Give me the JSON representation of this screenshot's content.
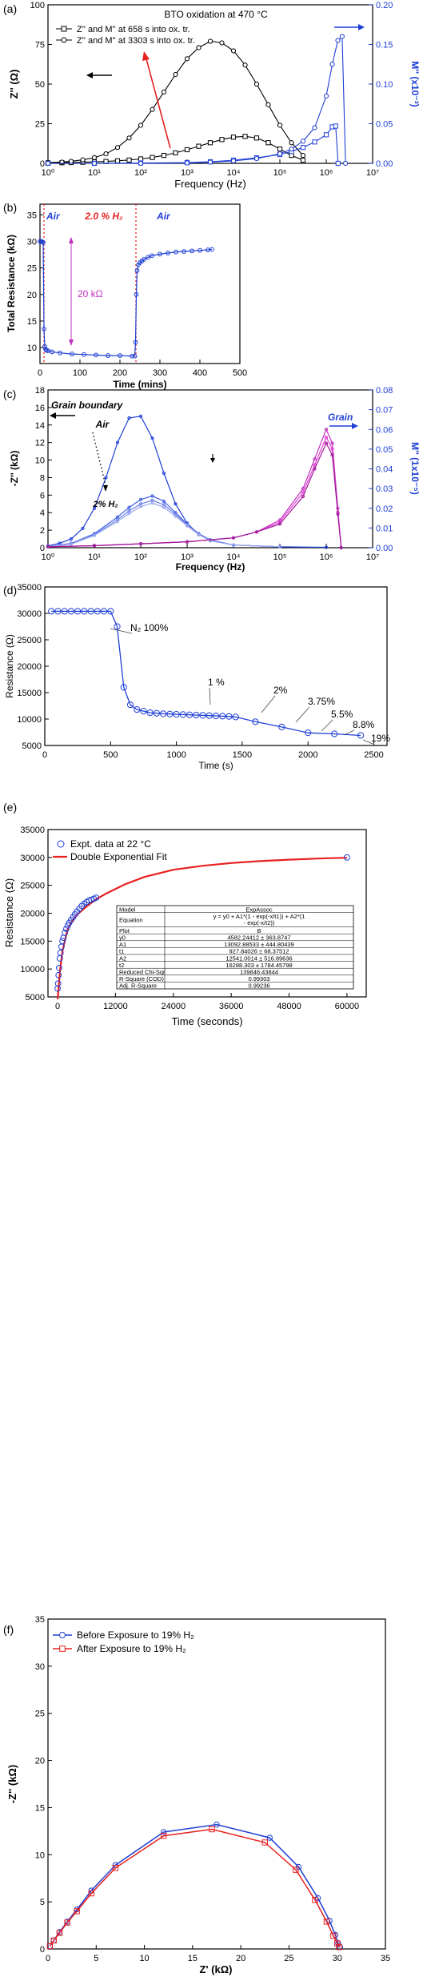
{
  "colors": {
    "black": "#000000",
    "blue": "#1f3fd6",
    "blue_light": "#6a80e6",
    "red": "#e82020",
    "magenta": "#c030c0",
    "magenta_dark": "#a01898",
    "pink": "#e040d0"
  },
  "chart_data": [
    {
      "panel": "(a)",
      "type": "line",
      "title": "BTO oxidation at 470 °C",
      "xlabel": "Frequency (Hz)",
      "ylabel": "Z'' (Ω)",
      "y2label": "M'' (x10⁻³)",
      "xscale": "log",
      "xlim": [
        1,
        10000000
      ],
      "ylim": [
        0,
        100
      ],
      "y2lim": [
        0,
        0.2
      ],
      "xticks": [
        "10⁰",
        "10¹",
        "10²",
        "10³",
        "10⁴",
        "10⁵",
        "10⁶",
        "10⁷"
      ],
      "yticks": [
        "0",
        "25",
        "50",
        "75",
        "100"
      ],
      "y2ticks": [
        "0.00",
        "0.05",
        "0.10",
        "0.15",
        "0.20"
      ],
      "legend": [
        "Z'' and M'' at 658 s into ox. tr.",
        "Z'' and M'' at 3303 s into ox. tr."
      ],
      "series": [
        {
          "name": "Z'' and M'' at 658 s into ox. tr.",
          "axis": "left",
          "marker": "square",
          "color": "#000000",
          "x": [
            1,
            2,
            3.16,
            5.62,
            10,
            17.8,
            31.6,
            56.2,
            100,
            178,
            316,
            562,
            1000,
            1780,
            3160,
            5620,
            10000,
            17800,
            31600,
            56200,
            100000,
            178000,
            316000
          ],
          "y": [
            0.3,
            0.4,
            0.5,
            0.7,
            0.9,
            1.2,
            1.6,
            2.1,
            2.8,
            3.7,
            5.0,
            6.6,
            8.6,
            10.8,
            13.0,
            15.0,
            16.5,
            17.0,
            16.0,
            13.0,
            9.0,
            5.0,
            2.0
          ]
        },
        {
          "name": "Z'' and M'' at 3303 s into ox. tr.",
          "axis": "left",
          "marker": "circle",
          "color": "#000000",
          "x": [
            1,
            2,
            3.16,
            5.62,
            10,
            17.8,
            31.6,
            56.2,
            100,
            178,
            316,
            562,
            1000,
            1780,
            3160,
            5620,
            10000,
            17800,
            31600,
            56200,
            100000,
            178000,
            316000
          ],
          "y": [
            0.5,
            0.8,
            1.3,
            2.2,
            3.6,
            6.0,
            10.0,
            16.0,
            24.0,
            34.0,
            45.0,
            56.0,
            66.0,
            73.0,
            77.0,
            76.0,
            71.0,
            62.0,
            50.0,
            37.0,
            24.0,
            13.0,
            5.0
          ]
        },
        {
          "name": "M'' 658 s",
          "axis": "right",
          "marker": "square",
          "color": "#1f3fd6",
          "x": [
            1,
            10,
            100,
            1000,
            3160,
            10000,
            31600,
            100000,
            178000,
            316000,
            562000,
            1000000,
            1350000,
            1600000,
            1800000
          ],
          "y": [
            0,
            0,
            0.0005,
            0.001,
            0.002,
            0.004,
            0.007,
            0.011,
            0.015,
            0.02,
            0.027,
            0.036,
            0.046,
            0.047,
            0
          ]
        },
        {
          "name": "M'' 3303 s",
          "axis": "right",
          "marker": "circle",
          "color": "#1f3fd6",
          "x": [
            1,
            10,
            100,
            1000,
            3160,
            10000,
            31600,
            100000,
            178000,
            316000,
            562000,
            1000000,
            1350000,
            1780000,
            2200000,
            2600000
          ],
          "y": [
            0,
            0,
            0,
            0.0005,
            0.0015,
            0.003,
            0.006,
            0.012,
            0.018,
            0.028,
            0.045,
            0.085,
            0.125,
            0.155,
            0.16,
            0
          ]
        }
      ]
    },
    {
      "panel": "(b)",
      "type": "line",
      "xlabel": "Time (mins)",
      "ylabel": "Total Resistance (kΩ)",
      "xlim": [
        0,
        500
      ],
      "ylim": [
        7,
        37
      ],
      "xticks": [
        "0",
        "100",
        "200",
        "300",
        "400",
        "500"
      ],
      "yticks": [
        "10",
        "15",
        "20",
        "25",
        "30",
        "35"
      ],
      "annotations": [
        "Air",
        "2.0 % H₂",
        "Air",
        "20 kΩ"
      ],
      "series": [
        {
          "name": "",
          "color": "#1f3fd6",
          "x": [
            0,
            3,
            6,
            8,
            10,
            12,
            14,
            16,
            20,
            30,
            50,
            80,
            110,
            140,
            170,
            200,
            230,
            237,
            239,
            241,
            243,
            246,
            250,
            255,
            260,
            270,
            280,
            300,
            320,
            340,
            360,
            380,
            400,
            420,
            430
          ],
          "y": [
            30.0,
            30.0,
            29.9,
            29.8,
            13.5,
            10.2,
            9.7,
            9.5,
            9.4,
            9.2,
            9.0,
            8.8,
            8.7,
            8.6,
            8.5,
            8.5,
            8.4,
            8.4,
            11.0,
            20.0,
            24.5,
            25.6,
            26.0,
            26.3,
            26.6,
            27.0,
            27.3,
            27.6,
            27.8,
            28.0,
            28.1,
            28.2,
            28.3,
            28.4,
            28.5
          ]
        }
      ]
    },
    {
      "panel": "(c)",
      "type": "line",
      "xlabel": "Frequency (Hz)",
      "ylabel": "-Z'' (kΩ)",
      "y2label": "M'' (1x10⁻⁵)",
      "xscale": "log",
      "xlim": [
        1,
        10000000
      ],
      "ylim": [
        0,
        18
      ],
      "y2lim": [
        0,
        0.08
      ],
      "xticks": [
        "10⁰",
        "10¹",
        "10²",
        "10³",
        "10⁴",
        "10⁵",
        "10⁶",
        "10⁷"
      ],
      "yticks": [
        "0",
        "2",
        "4",
        "6",
        "8",
        "10",
        "12",
        "14",
        "16",
        "18"
      ],
      "y2ticks": [
        "0.00",
        "0.01",
        "0.02",
        "0.03",
        "0.04",
        "0.05",
        "0.06",
        "0.07",
        "0.08"
      ],
      "annotations": [
        "Grain boundary",
        "Air",
        "2% H₂",
        "Grain"
      ],
      "series": [
        {
          "name": "",
          "color": "#1f3fd6",
          "x": [
            1,
            1.78,
            3.16,
            5.62,
            10,
            17.8,
            31.6,
            56.2,
            100,
            178,
            316,
            562,
            1000,
            1780,
            3160,
            10000,
            100000,
            1000000
          ],
          "y": [
            0.2,
            0.5,
            1.0,
            2.2,
            4.5,
            8.0,
            12.0,
            14.8,
            15.0,
            12.5,
            8.5,
            5.0,
            2.8,
            1.5,
            0.8,
            0.3,
            0.1,
            0.05
          ]
        },
        {
          "name": "",
          "color": "#3f5fe0",
          "x": [
            1,
            3.16,
            10,
            31.6,
            56.2,
            100,
            178,
            316,
            562,
            1000,
            1780,
            3160,
            10000,
            100000
          ],
          "y": [
            0.1,
            0.5,
            1.6,
            3.5,
            4.6,
            5.5,
            5.9,
            5.3,
            4.0,
            2.7,
            1.6,
            0.9,
            0.3,
            0.1
          ]
        },
        {
          "name": "",
          "color": "#6a80e6",
          "x": [
            1,
            3.16,
            10,
            31.6,
            56.2,
            100,
            178,
            316,
            562,
            1000,
            1780,
            3160,
            10000,
            100000
          ],
          "y": [
            0.1,
            0.5,
            1.5,
            3.2,
            4.2,
            5.0,
            5.4,
            4.9,
            3.8,
            2.6,
            1.5,
            0.9,
            0.3,
            0.1
          ]
        },
        {
          "name": "",
          "color": "#9aa8ee",
          "x": [
            1,
            3.16,
            10,
            31.6,
            56.2,
            100,
            178,
            316,
            562,
            1000,
            1780,
            3160,
            10000,
            100000
          ],
          "y": [
            0.1,
            0.4,
            1.4,
            3.0,
            3.9,
            4.7,
            5.1,
            4.6,
            3.6,
            2.5,
            1.5,
            0.8,
            0.3,
            0.1
          ]
        },
        {
          "name": "",
          "axis": "right",
          "color": "#c030c0",
          "x": [
            1,
            10,
            100,
            1000,
            10000,
            31600,
            100000,
            316000,
            562000,
            1000000,
            1350000,
            1780000,
            2100000
          ],
          "y": [
            0.0005,
            0.001,
            0.002,
            0.003,
            0.005,
            0.008,
            0.014,
            0.03,
            0.045,
            0.06,
            0.053,
            0.02,
            0.0
          ]
        },
        {
          "name": "",
          "axis": "right",
          "color": "#e040d0",
          "x": [
            1,
            10,
            100,
            1000,
            10000,
            31600,
            100000,
            316000,
            562000,
            1000000,
            1350000,
            1780000,
            2100000
          ],
          "y": [
            0.0005,
            0.001,
            0.002,
            0.003,
            0.005,
            0.008,
            0.013,
            0.028,
            0.042,
            0.056,
            0.05,
            0.018,
            0.0
          ]
        },
        {
          "name": "",
          "axis": "right",
          "color": "#a01898",
          "x": [
            1,
            10,
            100,
            1000,
            10000,
            31600,
            100000,
            316000,
            562000,
            1000000,
            1350000,
            1780000,
            2100000
          ],
          "y": [
            0.0005,
            0.001,
            0.002,
            0.003,
            0.005,
            0.008,
            0.012,
            0.026,
            0.04,
            0.053,
            0.047,
            0.017,
            0.0
          ]
        }
      ]
    },
    {
      "panel": "(d)",
      "type": "line",
      "xlabel": "Time (s)",
      "ylabel": "Resistance (Ω)",
      "xlim": [
        0,
        2600
      ],
      "ylim": [
        5000,
        35000
      ],
      "xticks": [
        "0",
        "500",
        "1000",
        "1500",
        "2000",
        "2500"
      ],
      "yticks": [
        "5000",
        "10000",
        "15000",
        "20000",
        "25000",
        "30000",
        "35000"
      ],
      "annotations": [
        "N₂ 100%",
        "1 %",
        "2%",
        "3.75%",
        "5.5%",
        "8.8%",
        "19%"
      ],
      "series": [
        {
          "name": "",
          "color": "#1f3fd6",
          "x": [
            50,
            100,
            150,
            200,
            250,
            300,
            350,
            400,
            450,
            500,
            550,
            600,
            650,
            700,
            750,
            800,
            850,
            900,
            950,
            1000,
            1050,
            1100,
            1150,
            1200,
            1250,
            1300,
            1350,
            1400,
            1450,
            1600,
            1800,
            2000,
            2200,
            2400
          ],
          "y": [
            30400,
            30400,
            30400,
            30400,
            30400,
            30400,
            30400,
            30400,
            30400,
            30400,
            27500,
            16000,
            12700,
            11800,
            11500,
            11200,
            11100,
            11000,
            10950,
            10900,
            10850,
            10800,
            10750,
            10700,
            10650,
            10600,
            10550,
            10500,
            10400,
            9500,
            8500,
            7400,
            7200,
            6900
          ]
        }
      ]
    },
    {
      "panel": "(e)",
      "type": "scatter",
      "xlabel": "Time (seconds)",
      "ylabel": "Resistance (Ω)",
      "xlim": [
        -2000,
        64000
      ],
      "ylim": [
        5000,
        35000
      ],
      "xticks": [
        "0",
        "12000",
        "24000",
        "36000",
        "48000",
        "60000"
      ],
      "yticks": [
        "5000",
        "10000",
        "15000",
        "20000",
        "25000",
        "30000",
        "35000"
      ],
      "legend": [
        "Expt. data at 22 °C",
        "Double Exponential Fit"
      ],
      "fit_table": [
        [
          "Model",
          "ExpAssoc"
        ],
        [
          "Equation",
          "y = y0 + A1*(1 - exp(-x/t1)) + A2*(1 - exp(-x/t2))"
        ],
        [
          "Plot",
          "B"
        ],
        [
          "y0",
          "4582.24412 ± 363.8747"
        ],
        [
          "A1",
          "13092.88533 ± 444.80439"
        ],
        [
          "t1",
          "927.84026 ± 68.37512"
        ],
        [
          "A2",
          "12541.0014 ± 516.89636"
        ],
        [
          "t2",
          "16288.303 ± 1784.45798"
        ],
        [
          "Reduced Chi-Sqr",
          "139846.43844"
        ],
        [
          "R-Square (COD)",
          "0.99303"
        ],
        [
          "Adj. R-Square",
          "0.99236"
        ]
      ],
      "series": [
        {
          "name": "Expt. data at 22 °C",
          "marker": "circle",
          "color": "#1f3fd6",
          "x": [
            0,
            100,
            200,
            300,
            450,
            600,
            800,
            1000,
            1200,
            1500,
            1800,
            2100,
            2400,
            2800,
            3200,
            3600,
            4000,
            4500,
            5000,
            5500,
            6000,
            6500,
            7000,
            7500,
            8000,
            60000
          ],
          "y": [
            6500,
            7400,
            8900,
            10200,
            11900,
            12900,
            14000,
            15000,
            15600,
            16500,
            17200,
            17800,
            18300,
            18800,
            19300,
            19800,
            20300,
            20800,
            21300,
            21700,
            22000,
            22300,
            22400,
            22600,
            22800,
            30000
          ]
        },
        {
          "name": "Double Exponential Fit",
          "color": "#e82020",
          "x": [
            0,
            500,
            1000,
            2000,
            3000,
            4000,
            6000,
            8000,
            10000,
            14000,
            18000,
            24000,
            30000,
            36000,
            42000,
            48000,
            54000,
            60000
          ],
          "y": [
            4582,
            9800,
            13200,
            16900,
            18600,
            19700,
            21200,
            22500,
            23500,
            25200,
            26500,
            27800,
            28500,
            29000,
            29350,
            29600,
            29800,
            29950
          ]
        }
      ]
    },
    {
      "panel": "(f)",
      "type": "line",
      "xlabel": "Z' (kΩ)",
      "ylabel": "-Z'' (kΩ)",
      "xlim": [
        0,
        35
      ],
      "ylim": [
        0,
        35
      ],
      "xticks": [
        "0",
        "5",
        "10",
        "15",
        "20",
        "25",
        "30",
        "35"
      ],
      "yticks": [
        "0",
        "5",
        "10",
        "15",
        "20",
        "25",
        "30",
        "35"
      ],
      "legend": [
        "Before Exposure to 19% H₂",
        "After Exposure to 19% H₂"
      ],
      "series": [
        {
          "name": "Before Exposure to 19% H₂",
          "marker": "circle",
          "color": "#1f3fd6",
          "x": [
            0.2,
            0.6,
            1.2,
            2.0,
            3.0,
            4.5,
            7.0,
            12.0,
            17.5,
            23.0,
            26.0,
            28.0,
            29.2,
            29.8,
            30.1,
            30.3
          ],
          "y": [
            0.3,
            0.9,
            1.8,
            2.9,
            4.2,
            6.2,
            8.9,
            12.4,
            13.2,
            11.8,
            8.7,
            5.4,
            3.0,
            1.5,
            0.6,
            0.2
          ]
        },
        {
          "name": "After Exposure to 19% H₂",
          "marker": "square",
          "color": "#e82020",
          "x": [
            0.2,
            0.6,
            1.2,
            2.0,
            3.0,
            4.5,
            7.0,
            12.0,
            17.0,
            22.5,
            25.7,
            27.7,
            28.9,
            29.6,
            30.0,
            30.2
          ],
          "y": [
            0.3,
            0.9,
            1.7,
            2.8,
            4.0,
            5.9,
            8.6,
            12.0,
            12.7,
            11.3,
            8.4,
            5.2,
            2.9,
            1.4,
            0.6,
            0.2
          ]
        }
      ]
    }
  ]
}
